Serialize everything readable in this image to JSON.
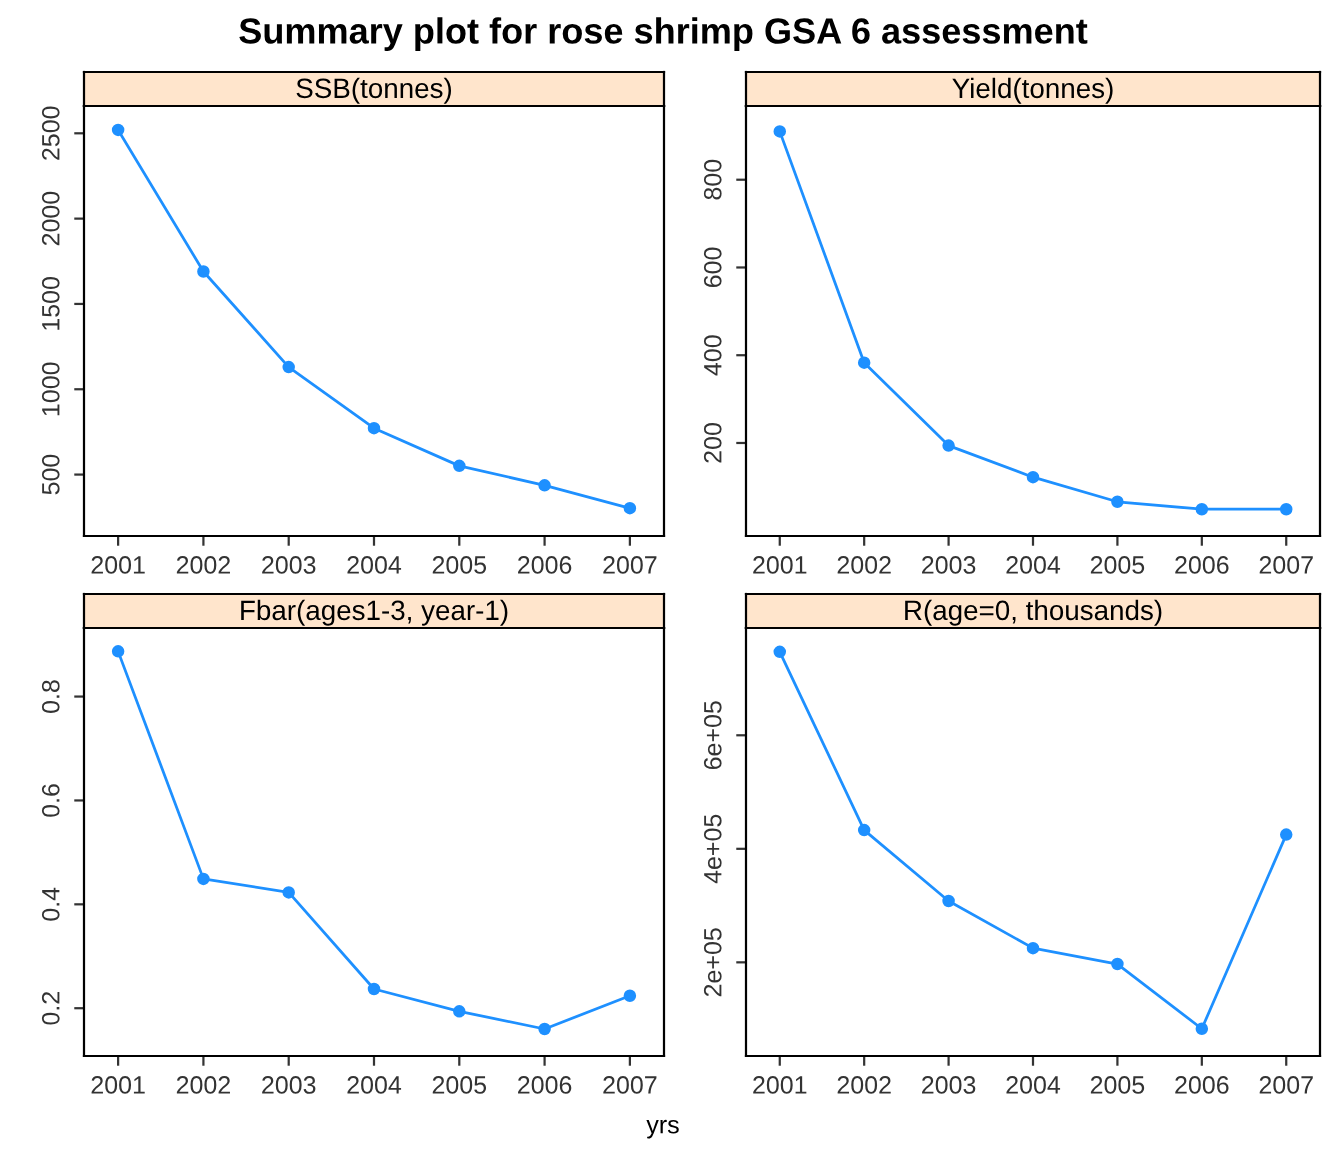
{
  "chart_data": [
    {
      "type": "line",
      "title": "SSB(tonnes)",
      "annotations": [
        "Summary plot for rose shrimp GSA 6 assessment"
      ],
      "categories": [
        "2001",
        "2002",
        "2003",
        "2004",
        "2005",
        "2006",
        "2007"
      ],
      "values": [
        2520,
        1690,
        1130,
        772,
        551,
        437,
        303
      ],
      "color": "#1e90ff",
      "marker": "circle",
      "ylim": [
        140,
        2660
      ],
      "yticks": [
        500,
        1000,
        1500,
        2000,
        2500
      ]
    },
    {
      "type": "line",
      "title": "Yield(tonnes)",
      "categories": [
        "2001",
        "2002",
        "2003",
        "2004",
        "2005",
        "2006",
        "2007"
      ],
      "values": [
        910,
        383,
        194,
        122,
        66,
        49,
        49
      ],
      "color": "#1e90ff",
      "marker": "circle",
      "ylim": [
        -12,
        968
      ],
      "yticks": [
        200,
        400,
        600,
        800
      ]
    },
    {
      "type": "line",
      "title": "Fbar(ages1-3, year-1)",
      "categories": [
        "2001",
        "2002",
        "2003",
        "2004",
        "2005",
        "2006",
        "2007"
      ],
      "values": [
        0.887,
        0.449,
        0.423,
        0.237,
        0.194,
        0.16,
        0.224
      ],
      "color": "#1e90ff",
      "marker": "circle",
      "ylim": [
        0.108,
        0.932
      ],
      "yticks": [
        0.2,
        0.4,
        0.6,
        0.8
      ]
    },
    {
      "type": "line",
      "title": "R(age=0, thousands)",
      "xlabel": "yrs",
      "categories": [
        "2001",
        "2002",
        "2003",
        "2004",
        "2005",
        "2006",
        "2007"
      ],
      "values": [
        747000,
        433000,
        308000,
        225000,
        197000,
        83000,
        425000
      ],
      "color": "#1e90ff",
      "marker": "circle",
      "ylim": [
        35000,
        789000
      ],
      "yticks": [
        {
          "value": 200000,
          "label": "2e+05"
        },
        {
          "value": 400000,
          "label": "4e+05"
        },
        {
          "value": 600000,
          "label": "6e+05"
        }
      ]
    }
  ]
}
